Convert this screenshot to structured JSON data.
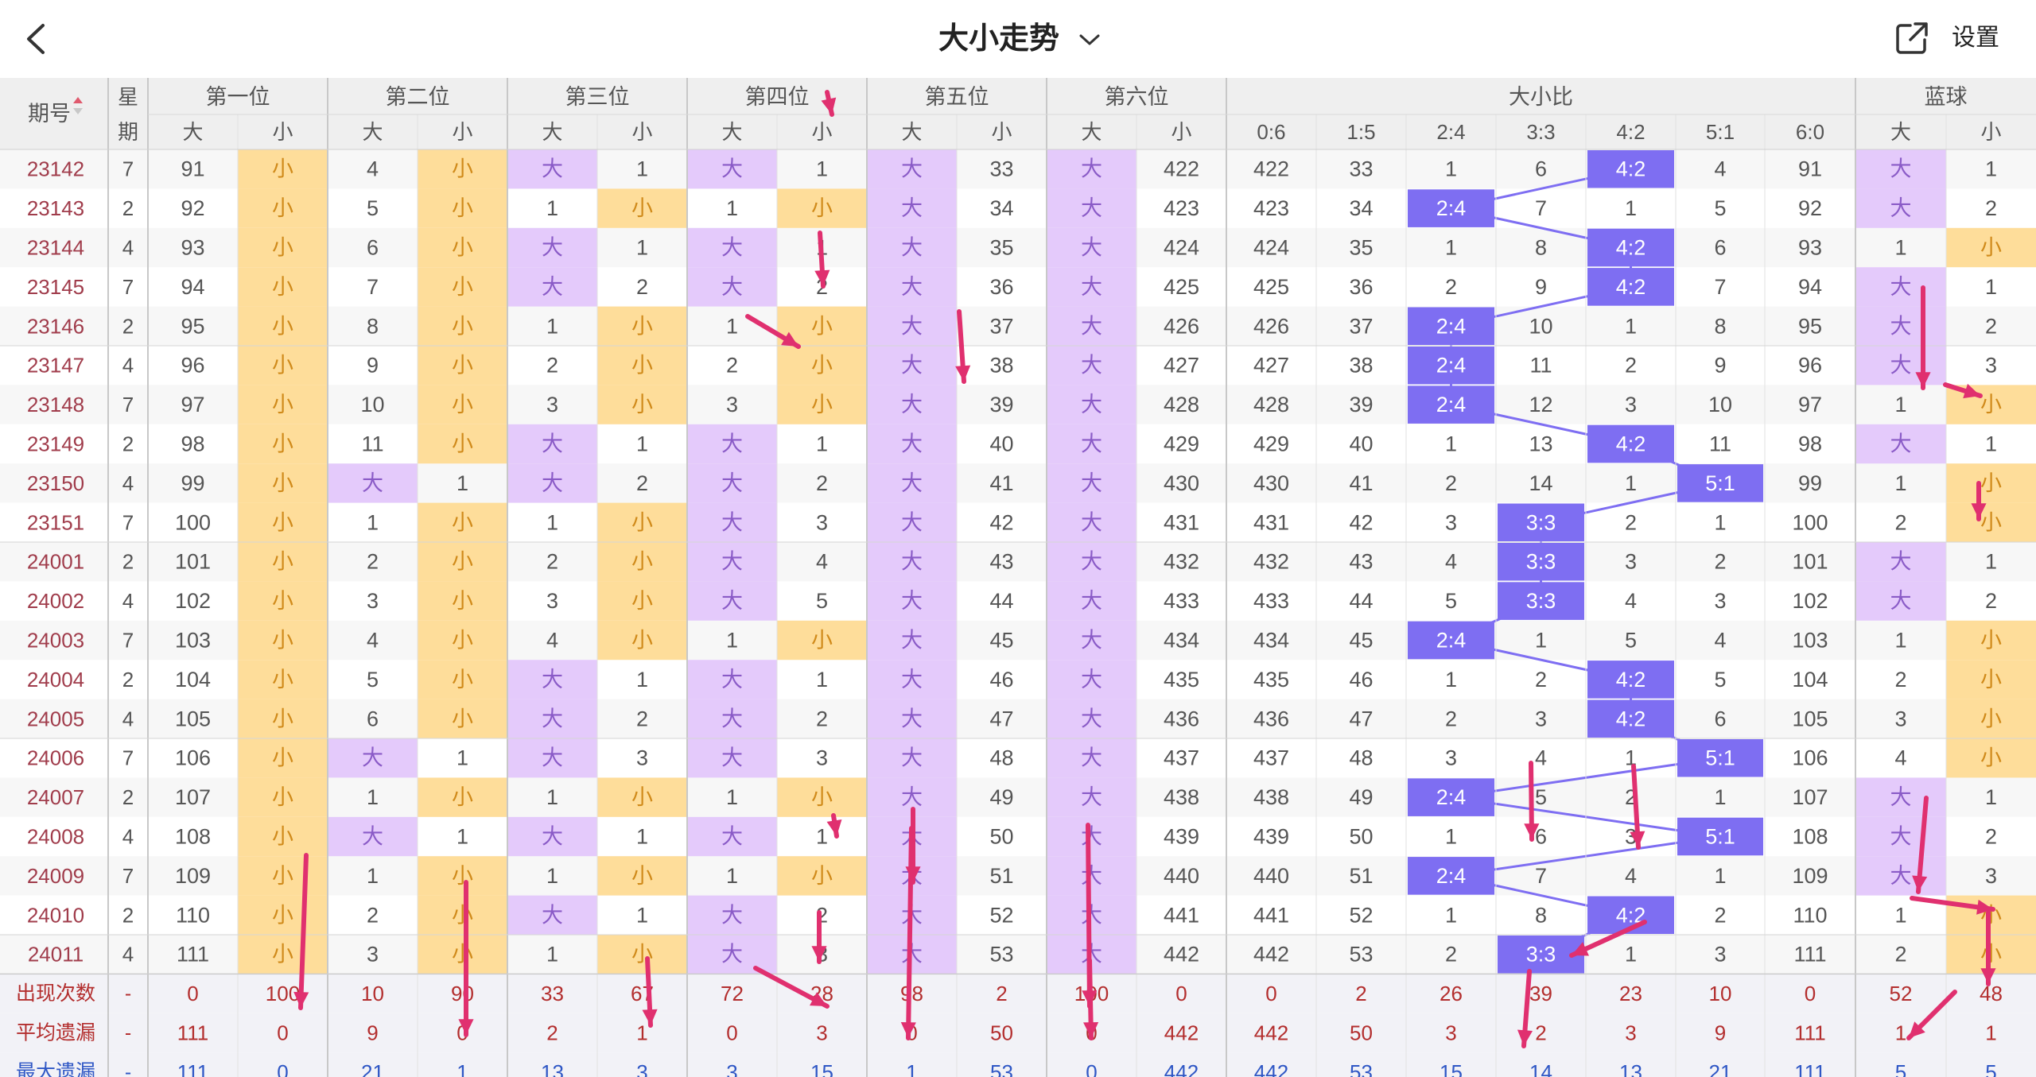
{
  "header": {
    "title": "大小走势",
    "settings_label": "设置",
    "icons": {
      "back": "chevron-left-icon",
      "title_dropdown": "chevron-down-icon",
      "share": "share-external-icon"
    }
  },
  "table": {
    "period_header": "期号",
    "weekday_header": "星期",
    "groups": [
      {
        "label": "第一位",
        "cols": [
          "大",
          "小"
        ]
      },
      {
        "label": "第二位",
        "cols": [
          "大",
          "小"
        ]
      },
      {
        "label": "第三位",
        "cols": [
          "大",
          "小"
        ]
      },
      {
        "label": "第四位",
        "cols": [
          "大",
          "小"
        ]
      },
      {
        "label": "第五位",
        "cols": [
          "大",
          "小"
        ]
      },
      {
        "label": "第六位",
        "cols": [
          "大",
          "小"
        ]
      },
      {
        "label": "大小比",
        "cols": [
          "0:6",
          "1:5",
          "2:4",
          "3:3",
          "4:2",
          "5:1",
          "6:0"
        ]
      },
      {
        "label": "蓝球",
        "cols": [
          "大",
          "小"
        ]
      }
    ],
    "rows": [
      {
        "p": "23142",
        "w": "7",
        "c": [
          "91",
          "小",
          "4",
          "小",
          "大",
          "1",
          "大",
          "1",
          "大",
          "33",
          "大",
          "422",
          "422",
          "33",
          "1",
          "6",
          "4:2",
          "4",
          "91",
          "大",
          "1"
        ]
      },
      {
        "p": "23143",
        "w": "2",
        "c": [
          "92",
          "小",
          "5",
          "小",
          "1",
          "小",
          "1",
          "小",
          "大",
          "34",
          "大",
          "423",
          "423",
          "34",
          "2:4",
          "7",
          "1",
          "5",
          "92",
          "大",
          "2"
        ]
      },
      {
        "p": "23144",
        "w": "4",
        "c": [
          "93",
          "小",
          "6",
          "小",
          "大",
          "1",
          "大",
          "1",
          "大",
          "35",
          "大",
          "424",
          "424",
          "35",
          "1",
          "8",
          "4:2",
          "6",
          "93",
          "1",
          "小"
        ]
      },
      {
        "p": "23145",
        "w": "7",
        "c": [
          "94",
          "小",
          "7",
          "小",
          "大",
          "2",
          "大",
          "2",
          "大",
          "36",
          "大",
          "425",
          "425",
          "36",
          "2",
          "9",
          "4:2",
          "7",
          "94",
          "大",
          "1"
        ]
      },
      {
        "p": "23146",
        "w": "2",
        "c": [
          "95",
          "小",
          "8",
          "小",
          "1",
          "小",
          "1",
          "小",
          "大",
          "37",
          "大",
          "426",
          "426",
          "37",
          "2:4",
          "10",
          "1",
          "8",
          "95",
          "大",
          "2"
        ]
      },
      {
        "p": "23147",
        "w": "4",
        "c": [
          "96",
          "小",
          "9",
          "小",
          "2",
          "小",
          "2",
          "小",
          "大",
          "38",
          "大",
          "427",
          "427",
          "38",
          "2:4",
          "11",
          "2",
          "9",
          "96",
          "大",
          "3"
        ]
      },
      {
        "p": "23148",
        "w": "7",
        "c": [
          "97",
          "小",
          "10",
          "小",
          "3",
          "小",
          "3",
          "小",
          "大",
          "39",
          "大",
          "428",
          "428",
          "39",
          "2:4",
          "12",
          "3",
          "10",
          "97",
          "1",
          "小"
        ]
      },
      {
        "p": "23149",
        "w": "2",
        "c": [
          "98",
          "小",
          "11",
          "小",
          "大",
          "1",
          "大",
          "1",
          "大",
          "40",
          "大",
          "429",
          "429",
          "40",
          "1",
          "13",
          "4:2",
          "11",
          "98",
          "大",
          "1"
        ]
      },
      {
        "p": "23150",
        "w": "4",
        "c": [
          "99",
          "小",
          "大",
          "1",
          "大",
          "2",
          "大",
          "2",
          "大",
          "41",
          "大",
          "430",
          "430",
          "41",
          "2",
          "14",
          "1",
          "5:1",
          "99",
          "1",
          "小"
        ]
      },
      {
        "p": "23151",
        "w": "7",
        "c": [
          "100",
          "小",
          "1",
          "小",
          "1",
          "小",
          "大",
          "3",
          "大",
          "42",
          "大",
          "431",
          "431",
          "42",
          "3",
          "3:3",
          "2",
          "1",
          "100",
          "2",
          "小"
        ]
      },
      {
        "p": "24001",
        "w": "2",
        "c": [
          "101",
          "小",
          "2",
          "小",
          "2",
          "小",
          "大",
          "4",
          "大",
          "43",
          "大",
          "432",
          "432",
          "43",
          "4",
          "3:3",
          "3",
          "2",
          "101",
          "大",
          "1"
        ]
      },
      {
        "p": "24002",
        "w": "4",
        "c": [
          "102",
          "小",
          "3",
          "小",
          "3",
          "小",
          "大",
          "5",
          "大",
          "44",
          "大",
          "433",
          "433",
          "44",
          "5",
          "3:3",
          "4",
          "3",
          "102",
          "大",
          "2"
        ]
      },
      {
        "p": "24003",
        "w": "7",
        "c": [
          "103",
          "小",
          "4",
          "小",
          "4",
          "小",
          "1",
          "小",
          "大",
          "45",
          "大",
          "434",
          "434",
          "45",
          "2:4",
          "1",
          "5",
          "4",
          "103",
          "1",
          "小"
        ]
      },
      {
        "p": "24004",
        "w": "2",
        "c": [
          "104",
          "小",
          "5",
          "小",
          "大",
          "1",
          "大",
          "1",
          "大",
          "46",
          "大",
          "435",
          "435",
          "46",
          "1",
          "2",
          "4:2",
          "5",
          "104",
          "2",
          "小"
        ]
      },
      {
        "p": "24005",
        "w": "4",
        "c": [
          "105",
          "小",
          "6",
          "小",
          "大",
          "2",
          "大",
          "2",
          "大",
          "47",
          "大",
          "436",
          "436",
          "47",
          "2",
          "3",
          "4:2",
          "6",
          "105",
          "3",
          "小"
        ]
      },
      {
        "p": "24006",
        "w": "7",
        "c": [
          "106",
          "小",
          "大",
          "1",
          "大",
          "3",
          "大",
          "3",
          "大",
          "48",
          "大",
          "437",
          "437",
          "48",
          "3",
          "4",
          "1",
          "5:1",
          "106",
          "4",
          "小"
        ]
      },
      {
        "p": "24007",
        "w": "2",
        "c": [
          "107",
          "小",
          "1",
          "小",
          "1",
          "小",
          "1",
          "小",
          "大",
          "49",
          "大",
          "438",
          "438",
          "49",
          "2:4",
          "5",
          "2",
          "1",
          "107",
          "大",
          "1"
        ]
      },
      {
        "p": "24008",
        "w": "4",
        "c": [
          "108",
          "小",
          "大",
          "1",
          "大",
          "1",
          "大",
          "1",
          "大",
          "50",
          "大",
          "439",
          "439",
          "50",
          "1",
          "6",
          "3",
          "5:1",
          "108",
          "大",
          "2"
        ]
      },
      {
        "p": "24009",
        "w": "7",
        "c": [
          "109",
          "小",
          "1",
          "小",
          "1",
          "小",
          "1",
          "小",
          "大",
          "51",
          "大",
          "440",
          "440",
          "51",
          "2:4",
          "7",
          "4",
          "1",
          "109",
          "大",
          "3"
        ]
      },
      {
        "p": "24010",
        "w": "2",
        "c": [
          "110",
          "小",
          "2",
          "小",
          "大",
          "1",
          "大",
          "2",
          "大",
          "52",
          "大",
          "441",
          "441",
          "52",
          "1",
          "8",
          "4:2",
          "2",
          "110",
          "1",
          "小"
        ]
      },
      {
        "p": "24011",
        "w": "4",
        "c": [
          "111",
          "小",
          "3",
          "小",
          "1",
          "小",
          "大",
          "3",
          "大",
          "53",
          "大",
          "442",
          "442",
          "53",
          "2",
          "3:3",
          "1",
          "3",
          "111",
          "2",
          "小"
        ]
      }
    ],
    "stats": [
      {
        "label": "出现次数",
        "w": "-",
        "c": [
          "0",
          "100",
          "10",
          "90",
          "33",
          "67",
          "72",
          "28",
          "98",
          "2",
          "100",
          "0",
          "0",
          "2",
          "26",
          "39",
          "23",
          "10",
          "0",
          "52",
          "48"
        ]
      },
      {
        "label": "平均遗漏",
        "w": "-",
        "c": [
          "111",
          "0",
          "9",
          "0",
          "2",
          "1",
          "0",
          "3",
          "0",
          "50",
          "0",
          "442",
          "442",
          "50",
          "3",
          "2",
          "3",
          "9",
          "111",
          "1",
          "1"
        ]
      },
      {
        "label": "最大遗漏",
        "w": "-",
        "c": [
          "111",
          "0",
          "21",
          "1",
          "13",
          "3",
          "3",
          "15",
          "1",
          "53",
          "0",
          "442",
          "442",
          "53",
          "15",
          "14",
          "13",
          "21",
          "111",
          "5",
          "5"
        ]
      }
    ]
  },
  "colors": {
    "big_fill": "#e4cafb",
    "small_fill": "#fedd9a",
    "ratio_fill": "#7e6ef2",
    "trend_line": "#7e6ef2",
    "annotation_arrow": "#e0306f",
    "period_text": "#a03c4b",
    "stat_text": "#b32e2e",
    "max_stat_text": "#2f57c5",
    "header_bg": "#efefef"
  },
  "annotations": "handwritten-red-arrow-icon"
}
